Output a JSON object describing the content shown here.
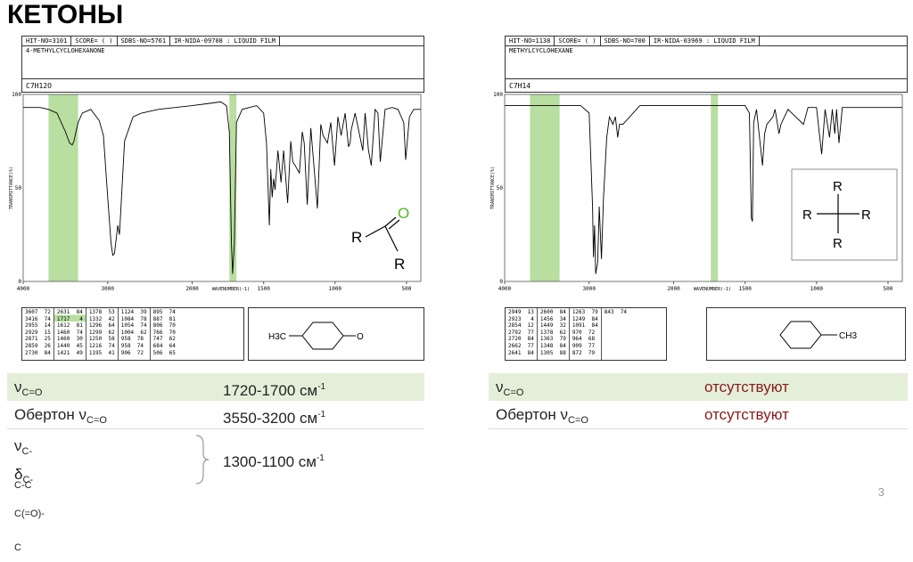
{
  "title": "КЕТОНЫ",
  "page_number": "3",
  "left": {
    "header": {
      "hit": "HIT-NO=3101",
      "score": "SCORE=  (  )",
      "sdbs": "SDBS-NO=5761",
      "ir": "IR-NIDA-09708 : LIQUID FILM",
      "name": "4-METHYLCYCLOHEXANONE",
      "formula": "C7H12O"
    },
    "y_ticks": [
      "100",
      "50",
      "0"
    ],
    "x_ticks": [
      "4000",
      "3000",
      "2000",
      "1500",
      "1000",
      "500"
    ],
    "ylabel": "TRANSMITTANCE(%)",
    "xlabel": "WAVENUMBER(-1)",
    "peak_table": [
      "3607  72\n3416  74\n2955  14\n2929  15\n2871  25\n2859  26\n2730  84",
      "2631  84\n1717   4\n1612  81\n1460  74\n1460  30\n1440  45\n1421  49",
      "1378  53\n1332  42\n1296  64\n1299  62\n1250  58\n1216  74\n1195  41",
      "1124  39\n1084  78\n1054  74\n1004  62\n958  78\n958  74\n906  72",
      "895  74\n887  81\n806  70\n766  70\n747  62\n684  64\n506  65"
    ],
    "mol_ch3": "H3C",
    "mol_o": "O",
    "struct": {
      "r1": "R",
      "o": "O",
      "r2": "R"
    },
    "rows": [
      {
        "label_main": "ν",
        "label_sub": "C=O",
        "value": "1720-1700 см",
        "value_sup": "-1"
      },
      {
        "label_pre": "Обертон ν",
        "label_sub": "C=O",
        "value": "3550-3200 см",
        "value_sup": "-1"
      }
    ],
    "group": {
      "l1_main": "ν",
      "l1_sub": "C-C-C",
      "l2_main": "δ",
      "l2_sub": "C-C(=O)-C",
      "value": "1300-1100 см",
      "value_sup": "-1"
    }
  },
  "right": {
    "header": {
      "hit": "HIT-NO=1138",
      "score": "SCORE=  (  )",
      "sdbs": "SDBS-NO=700",
      "ir": "IR-NIDA-03969 : LIQUID FILM",
      "name": "METHYLCYCLOHEXANE",
      "formula": "C7H14"
    },
    "y_ticks": [
      "100",
      "50",
      "0"
    ],
    "x_ticks": [
      "4000",
      "3000",
      "2000",
      "1500",
      "1000",
      "500"
    ],
    "ylabel": "TRANSMITTANCE(%)",
    "xlabel": "WAVENUMBER(-1)",
    "peak_table": [
      "2949  13\n2923   4\n2854  12\n2792  77\n2720  84\n2662  77\n2641  84",
      "2600  84\n1456  34\n1449  32\n1378  62\n1363  79\n1348  84\n1305  88",
      "1263  79\n1249  84\n1091  84\n970  72\n964  68\n909  77\n872  79",
      "843  74"
    ],
    "mol_ch3": "CH3",
    "struct": {
      "top": "R",
      "left": "R",
      "right": "R",
      "bottom": "R"
    },
    "rows": [
      {
        "label_main": "ν",
        "label_sub": "C=O",
        "value": "отсутствуют"
      },
      {
        "label_pre": "Обертон ν",
        "label_sub": "C=O",
        "value": "отсутствуют"
      }
    ]
  },
  "colors": {
    "highlight": "#b8dea0",
    "row_bg": "#e4efda",
    "trace": "#000000",
    "value_red": "#8b1a1a"
  },
  "chart_data": [
    {
      "type": "line",
      "title": "4-METHYLCYCLOHEXANONE",
      "xlabel": "WAVENUMBER(-1)",
      "ylabel": "TRANSMITTANCE(%)",
      "xlim": [
        4000,
        400
      ],
      "ylim": [
        0,
        100
      ],
      "highlight_bands": [
        [
          3700,
          3350
        ],
        [
          1740,
          1690
        ]
      ],
      "series": [
        {
          "x": [
            4000,
            3800,
            3700,
            3600,
            3500,
            3450,
            3420,
            3400,
            3350,
            3300,
            3200,
            3100,
            3050,
            3000,
            2960,
            2940,
            2920,
            2880,
            2860,
            2800,
            2700,
            2600,
            2400,
            2200,
            2000,
            1900,
            1800,
            1760,
            1740,
            1725,
            1717,
            1705,
            1690,
            1650,
            1600,
            1550,
            1500,
            1480,
            1460,
            1450,
            1440,
            1430,
            1420,
            1400,
            1378,
            1360,
            1332,
            1310,
            1296,
            1280,
            1250,
            1230,
            1216,
            1195,
            1170,
            1124,
            1100,
            1084,
            1054,
            1030,
            1004,
            980,
            958,
            930,
            906,
            895,
            887,
            860,
            806,
            790,
            766,
            747,
            720,
            700,
            684,
            650,
            600,
            560,
            520,
            506,
            480,
            450,
            400
          ],
          "y": [
            93,
            93,
            92,
            90,
            80,
            74,
            73,
            75,
            85,
            90,
            92,
            86,
            78,
            45,
            20,
            14,
            15,
            30,
            25,
            75,
            88,
            90,
            92,
            93,
            94,
            95,
            96,
            94,
            80,
            20,
            4,
            20,
            85,
            92,
            93,
            94,
            90,
            74,
            30,
            60,
            45,
            55,
            49,
            70,
            53,
            70,
            42,
            75,
            64,
            62,
            58,
            80,
            74,
            41,
            82,
            39,
            84,
            78,
            74,
            85,
            62,
            88,
            78,
            90,
            72,
            74,
            81,
            90,
            70,
            90,
            70,
            62,
            92,
            90,
            64,
            92,
            93,
            92,
            85,
            65,
            88,
            92,
            92
          ]
        }
      ]
    },
    {
      "type": "line",
      "title": "METHYLCYCLOHEXANE",
      "xlabel": "WAVENUMBER(-1)",
      "ylabel": "TRANSMITTANCE(%)",
      "xlim": [
        4000,
        400
      ],
      "ylim": [
        0,
        100
      ],
      "highlight_bands": [
        [
          3700,
          3350
        ],
        [
          1740,
          1690
        ]
      ],
      "series": [
        {
          "x": [
            4000,
            3800,
            3600,
            3400,
            3200,
            3100,
            3000,
            2960,
            2949,
            2935,
            2923,
            2900,
            2880,
            2854,
            2830,
            2792,
            2760,
            2720,
            2690,
            2662,
            2641,
            2600,
            2400,
            2200,
            2000,
            1800,
            1700,
            1600,
            1500,
            1470,
            1456,
            1449,
            1440,
            1420,
            1378,
            1363,
            1348,
            1305,
            1290,
            1263,
            1249,
            1200,
            1091,
            1060,
            1000,
            970,
            964,
            940,
            909,
            890,
            872,
            860,
            843,
            820,
            700,
            600,
            500,
            400
          ],
          "y": [
            94,
            94,
            94,
            94,
            94,
            94,
            90,
            40,
            13,
            30,
            4,
            10,
            40,
            12,
            45,
            77,
            88,
            84,
            88,
            77,
            84,
            84,
            94,
            94,
            94,
            94,
            94,
            94,
            94,
            90,
            34,
            32,
            85,
            92,
            62,
            79,
            84,
            88,
            92,
            79,
            84,
            92,
            84,
            93,
            93,
            72,
            68,
            92,
            77,
            92,
            79,
            92,
            74,
            93,
            93,
            93,
            93,
            93
          ]
        }
      ]
    }
  ]
}
